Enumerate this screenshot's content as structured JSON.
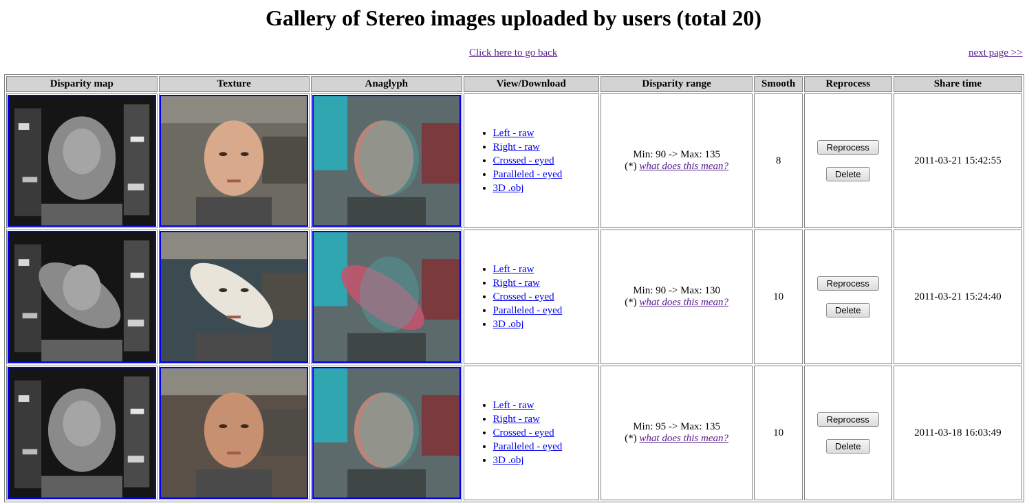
{
  "title": "Gallery of Stereo images uploaded by users (total 20)",
  "nav": {
    "back": "Click here to go back",
    "next": "next page >>"
  },
  "columns": [
    "Disparity map",
    "Texture",
    "Anaglyph",
    "View/Download",
    "Disparity range",
    "Smooth",
    "Reprocess",
    "Share time"
  ],
  "links": [
    "Left - raw",
    "Right - raw",
    "Crossed - eyed",
    "Paralleled - eyed",
    "3D .obj"
  ],
  "help_prefix": "(*) ",
  "help_link": "what does this mean?",
  "reprocess_label": "Reprocess",
  "delete_label": "Delete",
  "rows": [
    {
      "range": "Min: 90 -> Max: 135",
      "smooth": "8",
      "time": "2011-03-21 15:42:55",
      "subject": "face-man-bald"
    },
    {
      "range": "Min: 90 -> Max: 130",
      "smooth": "10",
      "time": "2011-03-21 15:24:40",
      "subject": "vase"
    },
    {
      "range": "Min: 95 -> Max: 135",
      "smooth": "10",
      "time": "2011-03-18 16:03:49",
      "subject": "face-man-young"
    }
  ],
  "colors": {
    "link": "#0000ee",
    "visited": "#551a8b",
    "header_bg": "#d3d3d3",
    "thumb_border": "#0000ee"
  }
}
